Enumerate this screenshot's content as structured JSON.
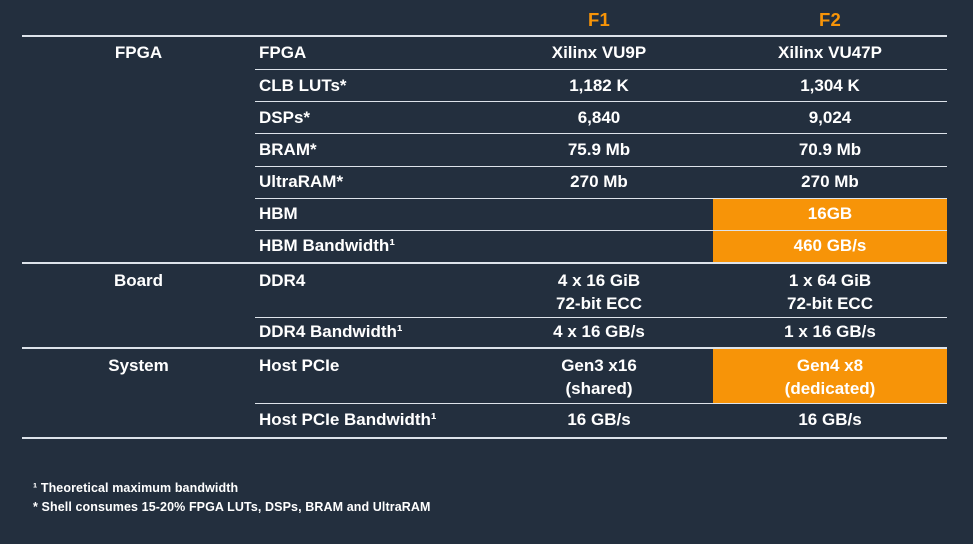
{
  "columns": {
    "f1": "F1",
    "f2": "F2"
  },
  "sections": [
    {
      "group": "FPGA",
      "rows": [
        {
          "label": "FPGA",
          "f1": "Xilinx VU9P",
          "f2": "Xilinx VU47P"
        },
        {
          "label": "CLB LUTs*",
          "f1": "1,182 K",
          "f2": "1,304 K"
        },
        {
          "label": "DSPs*",
          "f1": "6,840",
          "f2": "9,024"
        },
        {
          "label": "BRAM*",
          "f1": "75.9 Mb",
          "f2": "70.9 Mb"
        },
        {
          "label": "UltraRAM*",
          "f1": "270 Mb",
          "f2": "270 Mb"
        },
        {
          "label": "HBM",
          "f1": "",
          "f2": "16GB",
          "f2_highlight": true
        },
        {
          "label": "HBM Bandwidth¹",
          "f1": "",
          "f2": "460 GB/s",
          "f2_highlight": true
        }
      ]
    },
    {
      "group": "Board",
      "rows": [
        {
          "label": "DDR4",
          "f1": "4 x 16 GiB\n72-bit ECC",
          "f2": "1 x 64 GiB\n72-bit ECC"
        },
        {
          "label": "DDR4 Bandwidth¹",
          "f1": "4 x 16 GB/s",
          "f2": "1 x 16 GB/s"
        }
      ]
    },
    {
      "group": "System",
      "rows": [
        {
          "label": "Host PCIe",
          "f1": "Gen3 x16\n(shared)",
          "f2": "Gen4 x8\n(dedicated)",
          "f2_highlight": true
        },
        {
          "label": "Host PCIe Bandwidth¹",
          "f1": "16 GB/s",
          "f2": "16 GB/s"
        }
      ]
    }
  ],
  "footnotes": [
    "¹ Theoretical maximum bandwidth",
    "* Shell consumes 15-20% FPGA LUTs, DSPs, BRAM and UltraRAM"
  ],
  "theme": {
    "background": "#232f3e",
    "accent": "#f79408",
    "text_color": "#ffffff",
    "line_color": "#dde3ea"
  }
}
